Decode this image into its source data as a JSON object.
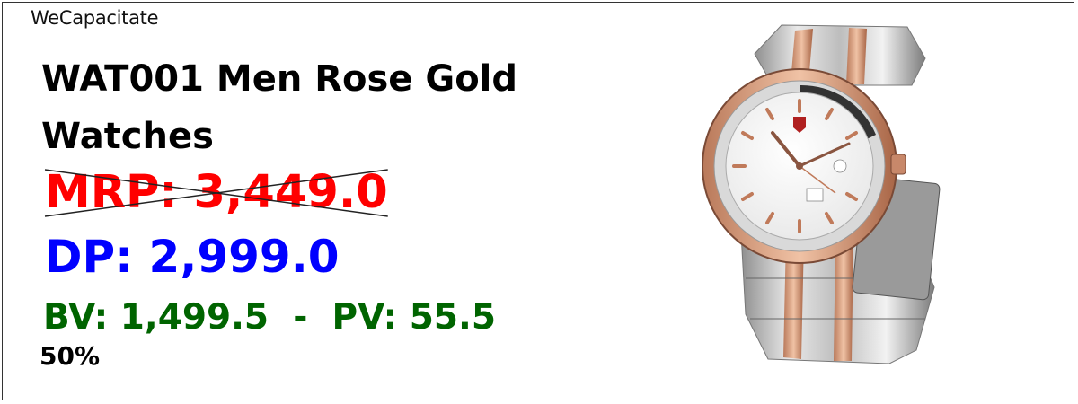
{
  "brand": "WeCapacitate",
  "product": {
    "title": "WAT001 Men Rose Gold Watches",
    "mrp": "MRP: 3,449.0",
    "dp": "DP: 2,999.0",
    "bv_pv": "BV: 1,499.5  -  PV: 55.5",
    "percent": "50%",
    "image_icon": "watch-product-image"
  },
  "colors": {
    "mrp": "#ff0000",
    "dp": "#0000ff",
    "bv_pv": "#006400"
  }
}
